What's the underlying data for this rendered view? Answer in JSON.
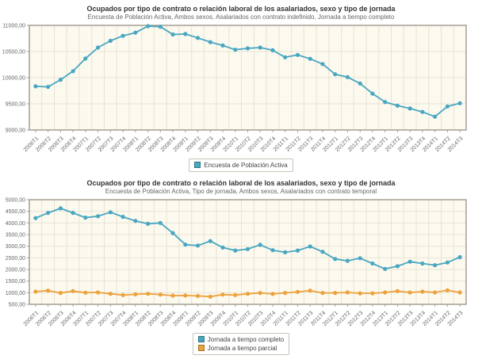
{
  "chart_data": [
    {
      "type": "line",
      "title": "Ocupados por tipo de contrato o relación laboral de los asalariados, sexo y tipo de jornada",
      "subtitle": "Encuesta de Población Activa,  Ambos sexos,  Asalariados con contrato indefinido,  Jornada a tiempo completo",
      "categories": [
        "2006T1",
        "2006T2",
        "2006T3",
        "2006T4",
        "2007T1",
        "2007T2",
        "2007T3",
        "2007T4",
        "2008T1",
        "2008T2",
        "2008T3",
        "2008T4",
        "2009T1",
        "2009T2",
        "2009T3",
        "2009T4",
        "2010T1",
        "2010T2",
        "2010T3",
        "2010T4",
        "2011T1",
        "2011T2",
        "2011T3",
        "2011T4",
        "2012T1",
        "2012T2",
        "2012T3",
        "2012T4",
        "2013T1",
        "2013T2",
        "2013T3",
        "2013T4",
        "2014T1",
        "2014T2",
        "2014T3"
      ],
      "series": [
        {
          "name": "Encuesta de Población Activa",
          "color": "#48a7c1",
          "values": [
            9835,
            9825,
            9960,
            10125,
            10365,
            10575,
            10705,
            10800,
            10860,
            10985,
            10975,
            10825,
            10835,
            10760,
            10680,
            10615,
            10535,
            10560,
            10575,
            10525,
            10390,
            10435,
            10360,
            10260,
            10065,
            10010,
            9890,
            9695,
            9535,
            9465,
            9410,
            9345,
            9255,
            9450,
            9510
          ]
        }
      ],
      "ylim": [
        9000,
        11000
      ],
      "ytick_step": 500,
      "ytick_labels": [
        "9000,00",
        "9500,00",
        "10000,00",
        "10500,00",
        "11000,00"
      ],
      "grid": true,
      "legend_position": "bottom",
      "plot_background": "#fcf9ee",
      "grid_color": "#e7e3d5",
      "border_color": "#a59f93",
      "axis_text_color": "#666666"
    },
    {
      "type": "line",
      "title": "Ocupados por tipo de contrato o relación laboral de los asalariados, sexo y tipo de jornada",
      "subtitle": "Encuesta de Población Activa, Tipo de jornada,  Ambos sexos,  Asalariados con contrato temporal",
      "categories": [
        "2006T1",
        "2006T2",
        "2006T3",
        "2006T4",
        "2007T1",
        "2007T2",
        "2007T3",
        "2007T4",
        "2008T1",
        "2008T2",
        "2008T3",
        "2008T4",
        "2009T1",
        "2009T2",
        "2009T3",
        "2009T4",
        "2010T1",
        "2010T2",
        "2010T3",
        "2010T4",
        "2011T1",
        "2011T2",
        "2011T3",
        "2011T4",
        "2012T1",
        "2012T2",
        "2012T3",
        "2012T4",
        "2013T1",
        "2013T2",
        "2013T3",
        "2013T4",
        "2014T1",
        "2014T2",
        "2014T3"
      ],
      "series": [
        {
          "name": "Jornada a tiempo completo",
          "color": "#48a7c1",
          "values": [
            4210,
            4435,
            4630,
            4435,
            4230,
            4290,
            4460,
            4265,
            4090,
            3965,
            4000,
            3565,
            3070,
            3025,
            3220,
            2945,
            2815,
            2875,
            3060,
            2830,
            2735,
            2815,
            2990,
            2760,
            2450,
            2370,
            2485,
            2255,
            2025,
            2140,
            2335,
            2255,
            2185,
            2300,
            2530
          ]
        },
        {
          "name": "Jornada a tiempo parcial",
          "color": "#eda23c",
          "values": [
            1045,
            1090,
            990,
            1070,
            1000,
            1010,
            955,
            900,
            930,
            955,
            920,
            875,
            880,
            860,
            830,
            920,
            900,
            955,
            990,
            945,
            990,
            1035,
            1090,
            990,
            990,
            1010,
            975,
            975,
            1010,
            1070,
            1010,
            1045,
            1010,
            1105,
            1010
          ]
        }
      ],
      "ylim": [
        500,
        5000
      ],
      "ytick_step": 500,
      "ytick_labels": [
        "500,00",
        "1000,00",
        "1500,00",
        "2000,00",
        "2500,00",
        "3000,00",
        "3500,00",
        "4000,00",
        "4500,00",
        "5000,00"
      ],
      "grid": true,
      "legend_position": "bottom",
      "plot_background": "#fcf9ee",
      "grid_color": "#e7e3d5",
      "border_color": "#a59f93",
      "axis_text_color": "#666666"
    }
  ]
}
